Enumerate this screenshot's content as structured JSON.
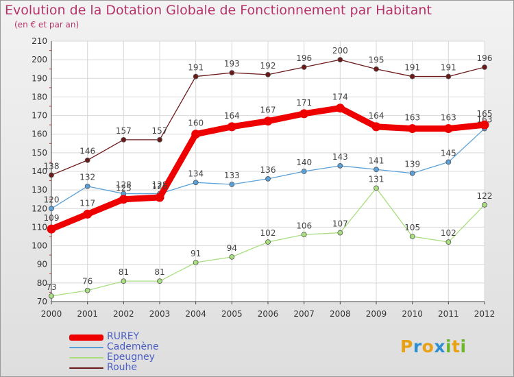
{
  "title": "Evolution de la Dotation Globale de Fonctionnement par Habitant",
  "subtitle": "(en € et par an)",
  "logo": {
    "letters": [
      "P",
      "r",
      "o",
      "x",
      "i",
      "t",
      "i"
    ],
    "colors": [
      "#e8a014",
      "#2e8fd0",
      "#e8a014",
      "#2e8fd0",
      "#6cb52c",
      "#e8a014",
      "#6cb52c"
    ]
  },
  "chart_data": {
    "type": "line",
    "categories": [
      "2000",
      "2001",
      "2002",
      "2003",
      "2004",
      "2005",
      "2006",
      "2007",
      "2008",
      "2009",
      "2010",
      "2011",
      "2012"
    ],
    "ylim": [
      70,
      210
    ],
    "yticks": [
      70,
      80,
      90,
      100,
      110,
      120,
      130,
      140,
      150,
      160,
      170,
      180,
      190,
      200,
      210
    ],
    "grid": true,
    "series": [
      {
        "name": "Rouhe",
        "color": "#6b1a1a",
        "values": [
          138,
          146,
          157,
          157,
          191,
          193,
          192,
          196,
          200,
          195,
          191,
          191,
          196
        ]
      },
      {
        "name": "Cademène",
        "color": "#5aa0d8",
        "values": [
          120,
          132,
          128,
          128,
          134,
          133,
          136,
          140,
          143,
          141,
          139,
          145,
          163
        ]
      },
      {
        "name": "Epeugney",
        "color": "#a8de7e",
        "values": [
          73,
          76,
          81,
          81,
          91,
          94,
          102,
          106,
          107,
          131,
          105,
          102,
          122
        ]
      },
      {
        "name": "RUREY",
        "color": "#ee0000",
        "values": [
          109,
          117,
          125,
          126,
          160,
          164,
          167,
          171,
          174,
          164,
          163,
          163,
          165
        ]
      }
    ],
    "legend": [
      {
        "name": "RUREY",
        "color": "#ee0000"
      },
      {
        "name": "Cademène",
        "color": "#5aa0d8"
      },
      {
        "name": "Epeugney",
        "color": "#a8de7e"
      },
      {
        "name": "Rouhe",
        "color": "#6b1a1a"
      }
    ],
    "legend_position": "bottom-left"
  }
}
